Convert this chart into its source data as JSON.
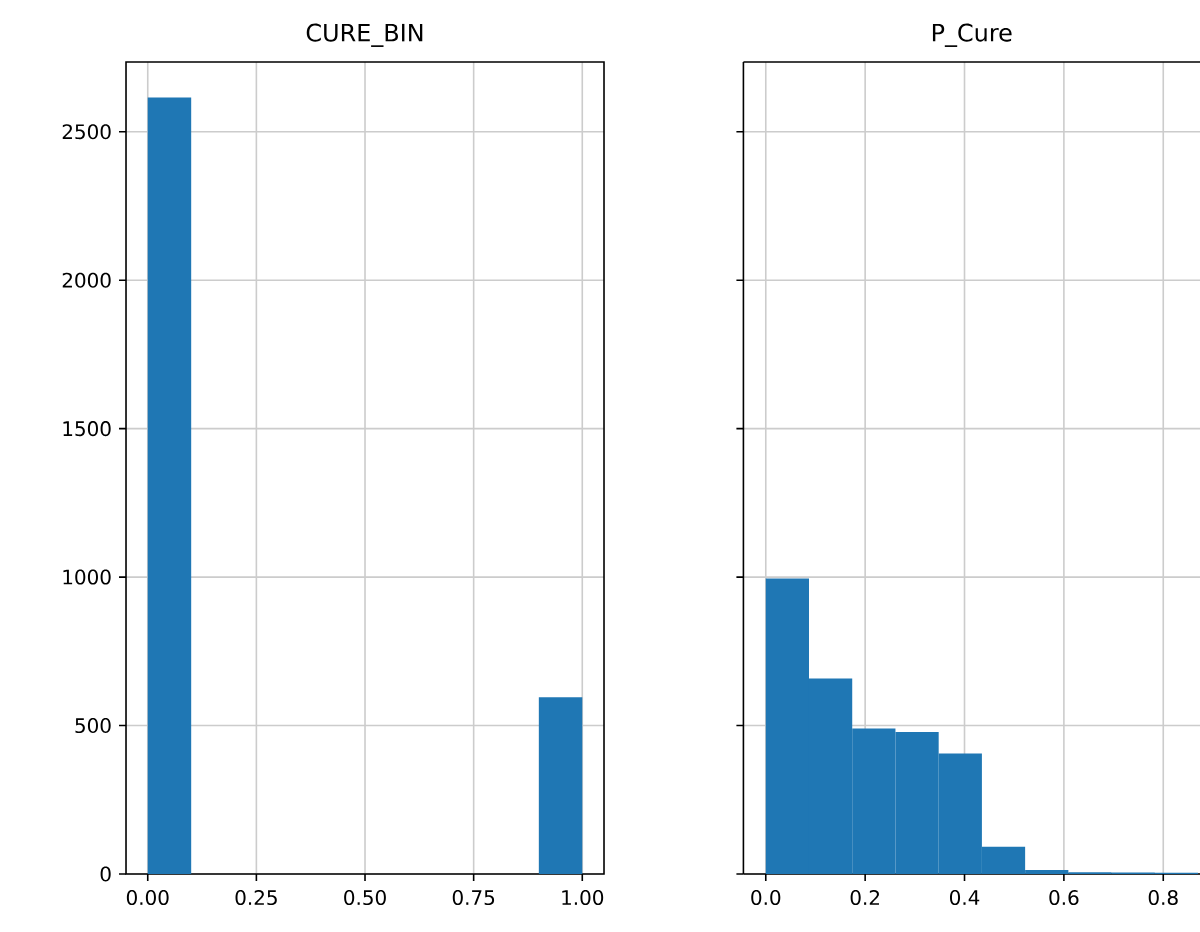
{
  "chart_data": [
    {
      "type": "histogram",
      "title": "CURE_BIN",
      "bins": [
        0,
        0.1,
        0.2,
        0.3,
        0.4,
        0.5,
        0.6,
        0.7,
        0.8,
        0.9,
        1.0
      ],
      "values": [
        2615,
        0,
        0,
        0,
        0,
        0,
        0,
        0,
        0,
        595
      ],
      "color": "#1f77b4",
      "xlim": [
        -0.05,
        1.05
      ],
      "xticks": [
        {
          "value": 0,
          "label": "0.00"
        },
        {
          "value": 0.25,
          "label": "0.25"
        },
        {
          "value": 0.5,
          "label": "0.50"
        },
        {
          "value": 0.75,
          "label": "0.75"
        },
        {
          "value": 1,
          "label": "1.00"
        }
      ],
      "ylim": [
        0,
        2735
      ],
      "yticks": [
        0,
        500,
        1000,
        1500,
        2000,
        2500
      ],
      "grid": true
    },
    {
      "type": "histogram",
      "title": "P_Cure",
      "bins": [
        0,
        0.087,
        0.174,
        0.261,
        0.348,
        0.435,
        0.522,
        0.609,
        0.696,
        0.783,
        0.87
      ],
      "values": [
        995,
        658,
        490,
        478,
        406,
        92,
        13,
        6,
        5,
        4
      ],
      "color": "#1f77b4",
      "xlim": [
        -0.045,
        0.874
      ],
      "xticks": [
        {
          "value": 0,
          "label": "0.0"
        },
        {
          "value": 0.2,
          "label": "0.2"
        },
        {
          "value": 0.4,
          "label": "0.4"
        },
        {
          "value": 0.6,
          "label": "0.6"
        },
        {
          "value": 0.8,
          "label": "0.8"
        }
      ],
      "ylim": [
        0,
        2735
      ],
      "yticks": [
        0,
        500,
        1000,
        1500,
        2000,
        2500
      ],
      "grid": true,
      "tick_labels": "x"
    }
  ]
}
